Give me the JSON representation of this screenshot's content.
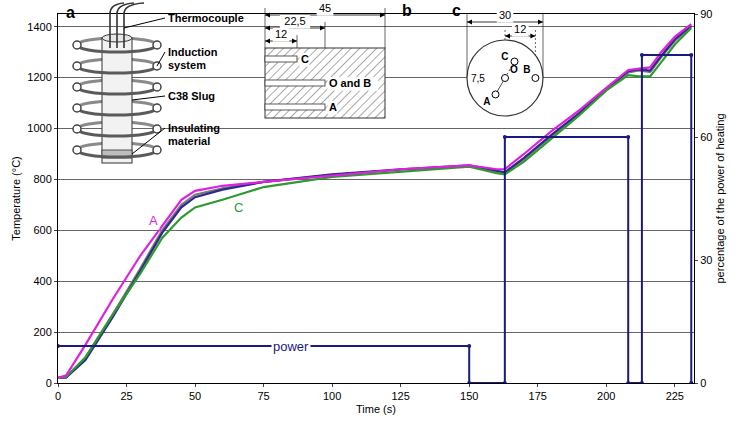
{
  "chart_data": {
    "type": "line",
    "x_label": "Time (s)",
    "y_label": "Temperature (°C)",
    "y2_label": "percentage of the power of heating",
    "xlim": [
      0,
      232
    ],
    "xticks": [
      0,
      25,
      50,
      75,
      100,
      125,
      150,
      175,
      200,
      225
    ],
    "ylim": [
      0,
      1450
    ],
    "yticks": [
      0,
      200,
      400,
      600,
      800,
      1000,
      1200,
      1400
    ],
    "y2lim": [
      0,
      90
    ],
    "y2ticks": [
      0,
      30,
      60,
      90
    ],
    "grid": true,
    "series": [
      {
        "color": "#7a7a7a",
        "line_style": "solid",
        "x": [
          0,
          3,
          10,
          20,
          30,
          38,
          45,
          50,
          60,
          75,
          100,
          125,
          150,
          160,
          163,
          170,
          180,
          190,
          200,
          208,
          212,
          216,
          220,
          225,
          231
        ],
        "values": [
          20,
          22,
          100,
          270,
          450,
          600,
          700,
          740,
          765,
          790,
          818,
          838,
          852,
          832,
          825,
          880,
          970,
          1055,
          1150,
          1220,
          1228,
          1222,
          1280,
          1345,
          1400
        ]
      },
      {
        "color": "#2b2b8c",
        "line_style": "solid",
        "x": [
          0,
          3,
          10,
          20,
          30,
          38,
          45,
          50,
          60,
          75,
          100,
          125,
          150,
          160,
          163,
          170,
          180,
          190,
          200,
          208,
          212,
          216,
          220,
          225,
          231
        ],
        "values": [
          20,
          22,
          90,
          260,
          440,
          590,
          690,
          730,
          760,
          790,
          820,
          840,
          855,
          835,
          828,
          885,
          975,
          1060,
          1155,
          1225,
          1232,
          1228,
          1285,
          1350,
          1405
        ]
      },
      {
        "name": "C",
        "color": "#2e9a2e",
        "line_style": "solid",
        "x": [
          0,
          3,
          10,
          20,
          30,
          38,
          45,
          50,
          60,
          75,
          100,
          125,
          150,
          160,
          163,
          170,
          180,
          190,
          200,
          208,
          212,
          216,
          220,
          225,
          231
        ],
        "values": [
          20,
          25,
          100,
          270,
          430,
          570,
          650,
          690,
          720,
          770,
          810,
          830,
          850,
          825,
          820,
          870,
          960,
          1050,
          1150,
          1210,
          1205,
          1205,
          1260,
          1330,
          1395
        ]
      },
      {
        "name": "A",
        "color": "#e020e0",
        "line_style": "solid",
        "x": [
          0,
          3,
          10,
          20,
          30,
          38,
          45,
          50,
          60,
          75,
          100,
          125,
          150,
          160,
          163,
          170,
          180,
          190,
          200,
          208,
          212,
          216,
          220,
          225,
          231
        ],
        "values": [
          20,
          30,
          150,
          330,
          500,
          620,
          720,
          755,
          775,
          790,
          815,
          840,
          855,
          840,
          840,
          900,
          990,
          1070,
          1160,
          1230,
          1235,
          1240,
          1300,
          1360,
          1410
        ]
      },
      {
        "name": "power",
        "color": "#1a1a80",
        "line_style": "solid",
        "marker": "circle",
        "axis": "y2",
        "x": [
          0,
          150,
          150,
          163,
          163,
          208,
          208,
          213,
          213,
          231,
          231
        ],
        "values": [
          9,
          9,
          0,
          0,
          60,
          60,
          0,
          0,
          80,
          80,
          0
        ]
      }
    ],
    "annotations": [
      {
        "text": "A",
        "x": 35,
        "y": 640,
        "color": "#e020e0"
      },
      {
        "text": "C",
        "x": 66,
        "y": 690,
        "color": "#2e9a2e"
      },
      {
        "text": "power",
        "x": 85,
        "y": 9,
        "axis": "y2",
        "color": "#1a1a80"
      }
    ]
  },
  "diagram": {
    "a": {
      "letter": "a",
      "labels": [
        "Thermocouple",
        "Induction system",
        "C38 Slug",
        "Insulating material"
      ]
    },
    "b": {
      "letter": "b",
      "dimensions": [
        "45",
        "22,5",
        "12"
      ],
      "points": [
        "C",
        "O and B",
        "A"
      ]
    },
    "c": {
      "letter": "c",
      "dimensions": [
        "30",
        "12",
        "7,5"
      ],
      "points": [
        "C",
        "O",
        "B",
        "A"
      ]
    }
  }
}
